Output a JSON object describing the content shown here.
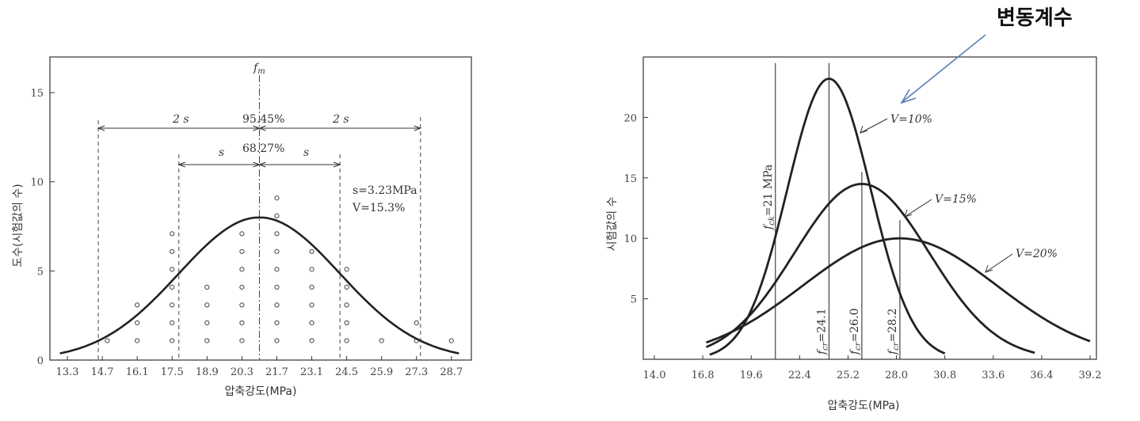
{
  "chart_data": [
    {
      "type": "scatter",
      "xlabel": "압축강도(MPa)",
      "ylabel": "도수(시험값의 수)",
      "x_ticks": [
        13.3,
        14.7,
        16.1,
        17.5,
        18.9,
        20.3,
        21.7,
        23.1,
        24.5,
        25.9,
        27.3,
        28.7
      ],
      "y_ticks": [
        0,
        5,
        10,
        15
      ],
      "xlim": [
        12.6,
        29.5
      ],
      "ylim": [
        0,
        17
      ],
      "points": [
        {
          "x": 14.9,
          "y": 1
        },
        {
          "x": 16.1,
          "y": 1
        },
        {
          "x": 16.1,
          "y": 2
        },
        {
          "x": 16.1,
          "y": 3
        },
        {
          "x": 17.5,
          "y": 1
        },
        {
          "x": 17.5,
          "y": 2
        },
        {
          "x": 17.5,
          "y": 3
        },
        {
          "x": 17.5,
          "y": 4
        },
        {
          "x": 17.5,
          "y": 5
        },
        {
          "x": 17.5,
          "y": 6
        },
        {
          "x": 17.5,
          "y": 7
        },
        {
          "x": 18.9,
          "y": 1
        },
        {
          "x": 18.9,
          "y": 2
        },
        {
          "x": 18.9,
          "y": 3
        },
        {
          "x": 18.9,
          "y": 4
        },
        {
          "x": 20.3,
          "y": 1
        },
        {
          "x": 20.3,
          "y": 2
        },
        {
          "x": 20.3,
          "y": 3
        },
        {
          "x": 20.3,
          "y": 4
        },
        {
          "x": 20.3,
          "y": 5
        },
        {
          "x": 20.3,
          "y": 6
        },
        {
          "x": 20.3,
          "y": 7
        },
        {
          "x": 21.7,
          "y": 1
        },
        {
          "x": 21.7,
          "y": 2
        },
        {
          "x": 21.7,
          "y": 3
        },
        {
          "x": 21.7,
          "y": 4
        },
        {
          "x": 21.7,
          "y": 5
        },
        {
          "x": 21.7,
          "y": 6
        },
        {
          "x": 21.7,
          "y": 7
        },
        {
          "x": 21.7,
          "y": 8
        },
        {
          "x": 21.7,
          "y": 9
        },
        {
          "x": 23.1,
          "y": 1
        },
        {
          "x": 23.1,
          "y": 2
        },
        {
          "x": 23.1,
          "y": 3
        },
        {
          "x": 23.1,
          "y": 4
        },
        {
          "x": 23.1,
          "y": 5
        },
        {
          "x": 23.1,
          "y": 6
        },
        {
          "x": 24.5,
          "y": 1
        },
        {
          "x": 24.5,
          "y": 2
        },
        {
          "x": 24.5,
          "y": 3
        },
        {
          "x": 24.5,
          "y": 4
        },
        {
          "x": 24.5,
          "y": 5
        },
        {
          "x": 25.9,
          "y": 1
        },
        {
          "x": 27.3,
          "y": 1
        },
        {
          "x": 27.3,
          "y": 2
        },
        {
          "x": 28.7,
          "y": 1
        }
      ],
      "curve": {
        "mean": 21.0,
        "sd": 3.23,
        "peak": 8
      },
      "annotations": {
        "mean_label": "f",
        "mean_label_sub": "m",
        "two_s": "2 s",
        "s": "s",
        "pct_95": "95.45%",
        "pct_68": "68.27%",
        "s_value": "s=3.23MPa",
        "v_value": "V=15.3%"
      },
      "grid": false
    },
    {
      "type": "line",
      "xlabel": "압축강도(MPa)",
      "ylabel": "시험값의 수",
      "x_ticks": [
        14.0,
        16.8,
        19.6,
        22.4,
        25.2,
        28.0,
        30.8,
        33.6,
        36.4,
        39.2
      ],
      "y_ticks": [
        5,
        10,
        15,
        20
      ],
      "xlim": [
        14.0,
        39.2
      ],
      "ylim": [
        0,
        25
      ],
      "series": [
        {
          "name": "V=10%",
          "mean": 24.1,
          "sd": 2.41,
          "peak": 23.2,
          "x_start": 17.2,
          "x_end": 30.8
        },
        {
          "name": "V=15%",
          "mean": 26.0,
          "sd": 3.9,
          "peak": 14.5,
          "x_start": 17.0,
          "x_end": 36.0
        },
        {
          "name": "V=20%",
          "mean": 28.2,
          "sd": 5.64,
          "peak": 10.0,
          "x_start": 17.0,
          "x_end": 39.2
        }
      ],
      "vlines": [
        {
          "x": 21.0,
          "label": "f",
          "sub": "ck",
          "tail": "=21 MPa",
          "ymax": 24.5
        },
        {
          "x": 24.1,
          "label": "f",
          "sub": "cr",
          "tail": "=24.1",
          "ymax": 24.5
        },
        {
          "x": 26.0,
          "label": "f",
          "sub": "cr",
          "tail": "=26.0",
          "ymax": 15.5
        },
        {
          "x": 28.2,
          "label": "f",
          "sub": "cr",
          "tail": "=28.2",
          "ymax": 11.5
        }
      ],
      "grid": false
    }
  ],
  "callout": {
    "text": "변동계수",
    "arrow_color": "#5b7fb8"
  }
}
